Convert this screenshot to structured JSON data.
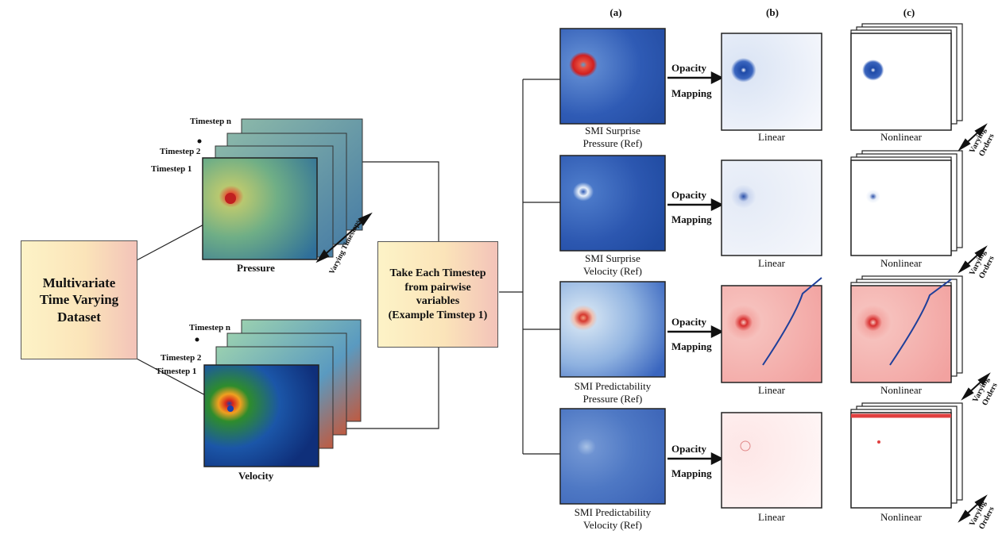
{
  "left_box": {
    "line1": "Multivariate",
    "line2": "Time Varying",
    "line3": "Dataset"
  },
  "mid_box": {
    "line1": "Take Each Timestep",
    "line2": "from pairwise",
    "line3": "variables",
    "line4": "(Example Timstep 1)"
  },
  "stacks": {
    "pressure": {
      "label": "Pressure",
      "ts_n": "Timestep n",
      "ts_2": "Timestep 2",
      "ts_1": "Timestep 1",
      "varying": "Varying Timesteps"
    },
    "velocity": {
      "label": "Velocity",
      "ts_n": "Timestep n",
      "ts_2": "Timestep 2",
      "ts_1": "Timestep 1"
    }
  },
  "columns": {
    "a": "(a)",
    "b": "(b)",
    "c": "(c)"
  },
  "opacity_label": {
    "line1": "Opacity",
    "line2": "Mapping"
  },
  "rows": [
    {
      "ref_line1": "SMI Surprise",
      "ref_line2": "Pressure (Ref)",
      "linear": "Linear",
      "nonlinear": "Nonlinear",
      "varying_line1": "Varying",
      "varying_line2": "Orders"
    },
    {
      "ref_line1": "SMI Surprise",
      "ref_line2": "Velocity (Ref)",
      "linear": "Linear",
      "nonlinear": "Nonlinear",
      "varying_line1": "Varying",
      "varying_line2": "Orders"
    },
    {
      "ref_line1": "SMI Predictability",
      "ref_line2": "Pressure (Ref)",
      "linear": "Linear",
      "nonlinear": "Nonlinear",
      "varying_line1": "Varying",
      "varying_line2": "Orders"
    },
    {
      "ref_line1": "SMI Predictability",
      "ref_line2": "Velocity (Ref)",
      "linear": "Linear",
      "nonlinear": "Nonlinear",
      "varying_line1": "Varying",
      "varying_line2": "Orders"
    }
  ],
  "colors": {
    "box_left": "#fdf3c7",
    "box_right": "#f3c3b9",
    "blue_ref": "#2f5bb5",
    "red_map": "#e5464b"
  }
}
